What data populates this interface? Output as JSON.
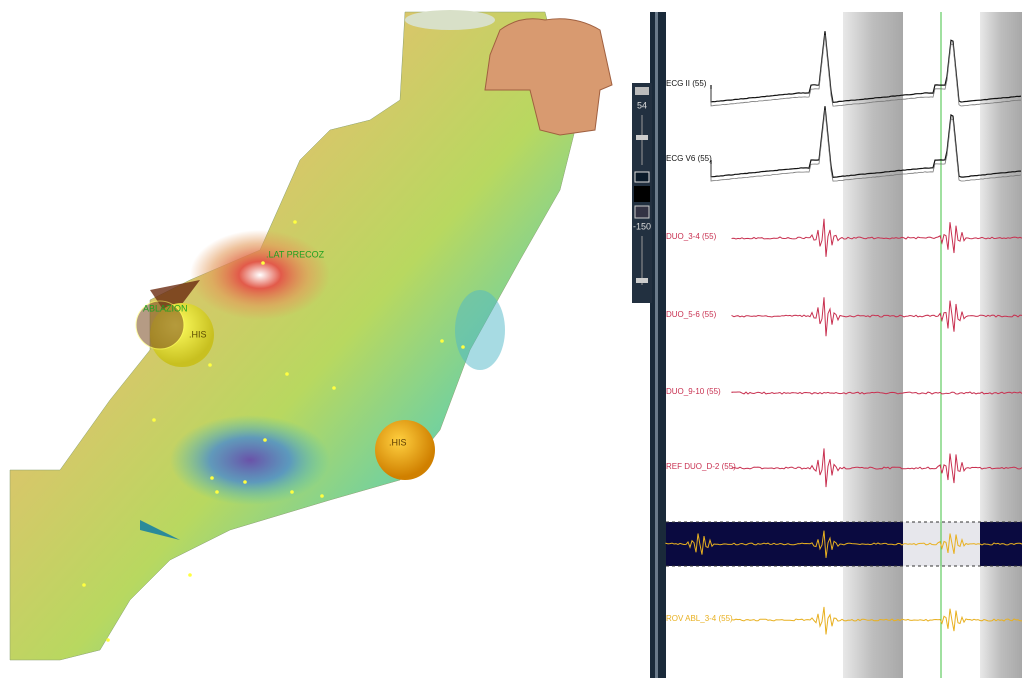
{
  "map": {
    "labels": [
      ".LAT PRECOZ",
      "ABLAZION",
      ".HIS",
      ".HIS"
    ]
  },
  "toolbar": {
    "top_value": "54",
    "bottom_value": "-150"
  },
  "channels": [
    "ECG II (55)",
    "ECG V6 (55)",
    "DUO_3-4 (55)",
    "DUO_5-6 (55)",
    "DUO_9-10 (55)",
    "REF DUO_D-2 (55)",
    "ROV ABL_3-4 (55)"
  ]
}
